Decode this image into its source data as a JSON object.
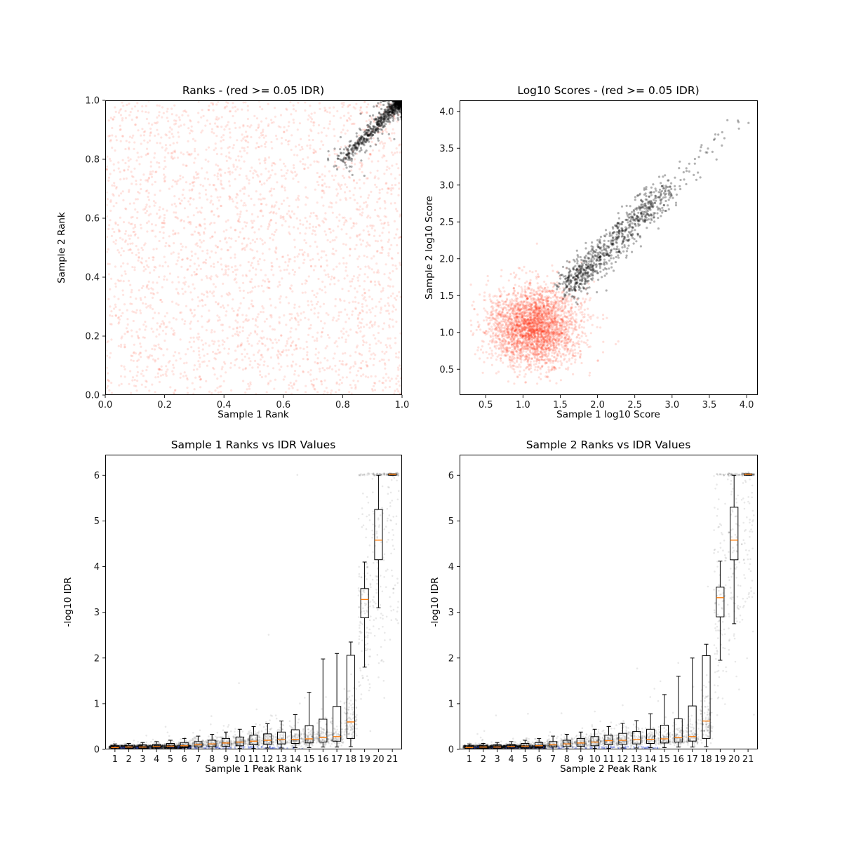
{
  "figure": {
    "background": "#ffffff"
  },
  "chart_data": [
    {
      "type": "scatter",
      "title": "Ranks - (red >= 0.05 IDR)",
      "xlabel": "Sample 1 Rank",
      "ylabel": "Sample 2 Rank",
      "xlim": [
        0,
        1
      ],
      "ylim": [
        0,
        1
      ],
      "xticks": {
        "values": [
          0,
          0.2,
          0.4,
          0.6,
          0.8,
          1.0
        ],
        "labels": [
          "0.0",
          "0.2",
          "0.4",
          "0.6",
          "0.8",
          "1.0"
        ]
      },
      "yticks": {
        "values": [
          0,
          0.2,
          0.4,
          0.6,
          0.8,
          1.0
        ],
        "labels": [
          "0.0",
          "0.2",
          "0.4",
          "0.6",
          "0.8",
          "1.0"
        ]
      },
      "legend": "none",
      "grid": false,
      "series": [
        {
          "name": "idr-ge-0.05-red",
          "gen": "uniform-rect",
          "xr": [
            0.003,
            0.997
          ],
          "yr": [
            0.003,
            0.997
          ],
          "count": 2800,
          "color": "#ff2400",
          "alpha": 0.12,
          "r": 1.6,
          "seed": 11
        },
        {
          "name": "idr-lt-0.05-black",
          "gen": "corner-diag",
          "count": 950,
          "color": "#000000",
          "alpha": 0.32,
          "r": 1.6,
          "seed": 12
        }
      ]
    },
    {
      "type": "scatter",
      "title": "Log10 Scores - (red >= 0.05 IDR)",
      "xlabel": "Sample 1 log10 Score",
      "ylabel": "Sample 2 log10 Score",
      "xlim": [
        0.15,
        4.15
      ],
      "ylim": [
        0.15,
        4.15
      ],
      "xticks": {
        "values": [
          0.5,
          1.0,
          1.5,
          2.0,
          2.5,
          3.0,
          3.5,
          4.0
        ],
        "labels": [
          "0.5",
          "1.0",
          "1.5",
          "2.0",
          "2.5",
          "3.0",
          "3.5",
          "4.0"
        ]
      },
      "yticks": {
        "values": [
          0.5,
          1.0,
          1.5,
          2.0,
          2.5,
          3.0,
          3.5,
          4.0
        ],
        "labels": [
          "0.5",
          "1.0",
          "1.5",
          "2.0",
          "2.5",
          "3.0",
          "3.5",
          "4.0"
        ]
      },
      "legend": "none",
      "grid": false,
      "series": [
        {
          "name": "idr-ge-0.05-red",
          "gen": "gauss-cluster",
          "cx": 1.15,
          "cy": 1.08,
          "sx": 0.3,
          "sy": 0.27,
          "min": 0.3,
          "count": 3200,
          "color": "#ff2400",
          "alpha": 0.14,
          "r": 1.6,
          "seed": 21
        },
        {
          "name": "idr-lt-0.05-black",
          "gen": "diag-band",
          "count": 880,
          "color": "#000000",
          "alpha": 0.3,
          "r": 1.6,
          "seed": 22
        }
      ]
    },
    {
      "type": "box+scatter",
      "title": "Sample 1 Ranks vs IDR Values",
      "xlabel": "Sample 1 Peak Rank",
      "ylabel": "-log10 IDR",
      "xlim": [
        0.3,
        21.7
      ],
      "ylim": [
        0,
        6.45
      ],
      "xticks": {
        "values": [
          1,
          2,
          3,
          4,
          5,
          6,
          7,
          8,
          9,
          10,
          11,
          12,
          13,
          14,
          15,
          16,
          17,
          18,
          19,
          20,
          21
        ],
        "labels": [
          "1",
          "2",
          "3",
          "4",
          "5",
          "6",
          "7",
          "8",
          "9",
          "10",
          "11",
          "12",
          "13",
          "14",
          "15",
          "16",
          "17",
          "18",
          "19",
          "20",
          "21"
        ]
      },
      "yticks": {
        "values": [
          0,
          1,
          2,
          3,
          4,
          5,
          6
        ],
        "labels": [
          "0",
          "1",
          "2",
          "3",
          "4",
          "5",
          "6"
        ]
      },
      "legend": "none",
      "grid": false,
      "box_style": {
        "stroke": "#000000",
        "median_color": "#ff7f0e",
        "box_width": 0.56,
        "cap_width": 0.3
      },
      "boxes": [
        [
          0.01,
          0.04,
          0.08,
          0.0,
          0.12
        ],
        [
          0.02,
          0.05,
          0.09,
          0.0,
          0.13
        ],
        [
          0.02,
          0.05,
          0.1,
          0.0,
          0.15
        ],
        [
          0.03,
          0.06,
          0.11,
          0.0,
          0.17
        ],
        [
          0.03,
          0.07,
          0.13,
          0.0,
          0.2
        ],
        [
          0.04,
          0.08,
          0.15,
          0.0,
          0.24
        ],
        [
          0.05,
          0.1,
          0.17,
          0.0,
          0.29
        ],
        [
          0.06,
          0.12,
          0.2,
          0.01,
          0.33
        ],
        [
          0.07,
          0.14,
          0.24,
          0.01,
          0.38
        ],
        [
          0.08,
          0.16,
          0.27,
          0.02,
          0.44
        ],
        [
          0.1,
          0.18,
          0.31,
          0.02,
          0.5
        ],
        [
          0.11,
          0.2,
          0.34,
          0.03,
          0.56
        ],
        [
          0.12,
          0.21,
          0.38,
          0.03,
          0.62
        ],
        [
          0.13,
          0.22,
          0.43,
          0.04,
          0.76
        ],
        [
          0.14,
          0.23,
          0.52,
          0.04,
          1.25
        ],
        [
          0.16,
          0.26,
          0.66,
          0.05,
          1.98
        ],
        [
          0.18,
          0.28,
          0.94,
          0.05,
          2.1
        ],
        [
          0.24,
          0.6,
          2.06,
          0.06,
          2.35
        ],
        [
          2.88,
          3.28,
          3.52,
          1.8,
          4.1
        ],
        [
          4.15,
          4.58,
          5.25,
          3.1,
          6.0
        ],
        [
          6.0,
          6.02,
          6.03,
          6.0,
          6.03
        ]
      ],
      "series": [
        {
          "name": "idr-points-gray",
          "gen": "rank-curve",
          "count": 2500,
          "color": "#000000",
          "alpha": 0.09,
          "r": 1.3,
          "seed": 31
        },
        {
          "name": "idr-points-dense-low",
          "gen": "uniform-rect",
          "xr": [
            0.6,
            6.5
          ],
          "yr": [
            0.015,
            0.09
          ],
          "count": 700,
          "color": "#000000",
          "alpha": 0.3,
          "r": 1.2,
          "seed": 32
        },
        {
          "name": "idr-points-blue",
          "gen": "uniform-rect",
          "xr": [
            0.6,
            14.5
          ],
          "yr": [
            0.008,
            0.06
          ],
          "count": 120,
          "color": "#2f4bd8",
          "alpha": 0.35,
          "r": 1.3,
          "seed": 33
        }
      ]
    },
    {
      "type": "box+scatter",
      "title": "Sample 2 Ranks vs IDR Values",
      "xlabel": "Sample 2 Peak Rank",
      "ylabel": "-log10 IDR",
      "xlim": [
        0.3,
        21.7
      ],
      "ylim": [
        0,
        6.45
      ],
      "xticks": {
        "values": [
          1,
          2,
          3,
          4,
          5,
          6,
          7,
          8,
          9,
          10,
          11,
          12,
          13,
          14,
          15,
          16,
          17,
          18,
          19,
          20,
          21
        ],
        "labels": [
          "1",
          "2",
          "3",
          "4",
          "5",
          "6",
          "7",
          "8",
          "9",
          "10",
          "11",
          "12",
          "13",
          "14",
          "15",
          "16",
          "17",
          "18",
          "19",
          "20",
          "21"
        ]
      },
      "yticks": {
        "values": [
          0,
          1,
          2,
          3,
          4,
          5,
          6
        ],
        "labels": [
          "0",
          "1",
          "2",
          "3",
          "4",
          "5",
          "6"
        ]
      },
      "legend": "none",
      "grid": false,
      "box_style": {
        "stroke": "#000000",
        "median_color": "#ff7f0e",
        "box_width": 0.56,
        "cap_width": 0.3
      },
      "boxes": [
        [
          0.01,
          0.04,
          0.08,
          0.0,
          0.12
        ],
        [
          0.02,
          0.05,
          0.09,
          0.0,
          0.13
        ],
        [
          0.02,
          0.05,
          0.1,
          0.0,
          0.15
        ],
        [
          0.03,
          0.06,
          0.11,
          0.0,
          0.17
        ],
        [
          0.03,
          0.07,
          0.13,
          0.0,
          0.2
        ],
        [
          0.04,
          0.08,
          0.15,
          0.0,
          0.24
        ],
        [
          0.05,
          0.1,
          0.17,
          0.0,
          0.29
        ],
        [
          0.06,
          0.12,
          0.2,
          0.01,
          0.33
        ],
        [
          0.07,
          0.14,
          0.24,
          0.01,
          0.38
        ],
        [
          0.08,
          0.16,
          0.28,
          0.02,
          0.44
        ],
        [
          0.1,
          0.19,
          0.31,
          0.02,
          0.5
        ],
        [
          0.11,
          0.2,
          0.35,
          0.03,
          0.57
        ],
        [
          0.12,
          0.21,
          0.39,
          0.03,
          0.63
        ],
        [
          0.13,
          0.22,
          0.44,
          0.04,
          0.78
        ],
        [
          0.14,
          0.23,
          0.53,
          0.04,
          1.2
        ],
        [
          0.16,
          0.26,
          0.67,
          0.05,
          1.6
        ],
        [
          0.18,
          0.28,
          0.95,
          0.05,
          2.0
        ],
        [
          0.24,
          0.62,
          2.05,
          0.06,
          2.3
        ],
        [
          2.9,
          3.32,
          3.55,
          1.95,
          4.12
        ],
        [
          4.15,
          4.58,
          5.3,
          2.75,
          6.0
        ],
        [
          6.0,
          6.02,
          6.03,
          6.0,
          6.03
        ]
      ],
      "series": [
        {
          "name": "idr-points-gray",
          "gen": "rank-curve",
          "count": 2500,
          "color": "#000000",
          "alpha": 0.09,
          "r": 1.3,
          "seed": 41
        },
        {
          "name": "idr-points-dense-low",
          "gen": "uniform-rect",
          "xr": [
            0.6,
            6.5
          ],
          "yr": [
            0.015,
            0.09
          ],
          "count": 700,
          "color": "#000000",
          "alpha": 0.3,
          "r": 1.2,
          "seed": 42
        },
        {
          "name": "idr-points-blue",
          "gen": "uniform-rect",
          "xr": [
            0.6,
            14.5
          ],
          "yr": [
            0.008,
            0.06
          ],
          "count": 120,
          "color": "#2f4bd8",
          "alpha": 0.35,
          "r": 1.3,
          "seed": 43
        }
      ]
    }
  ]
}
